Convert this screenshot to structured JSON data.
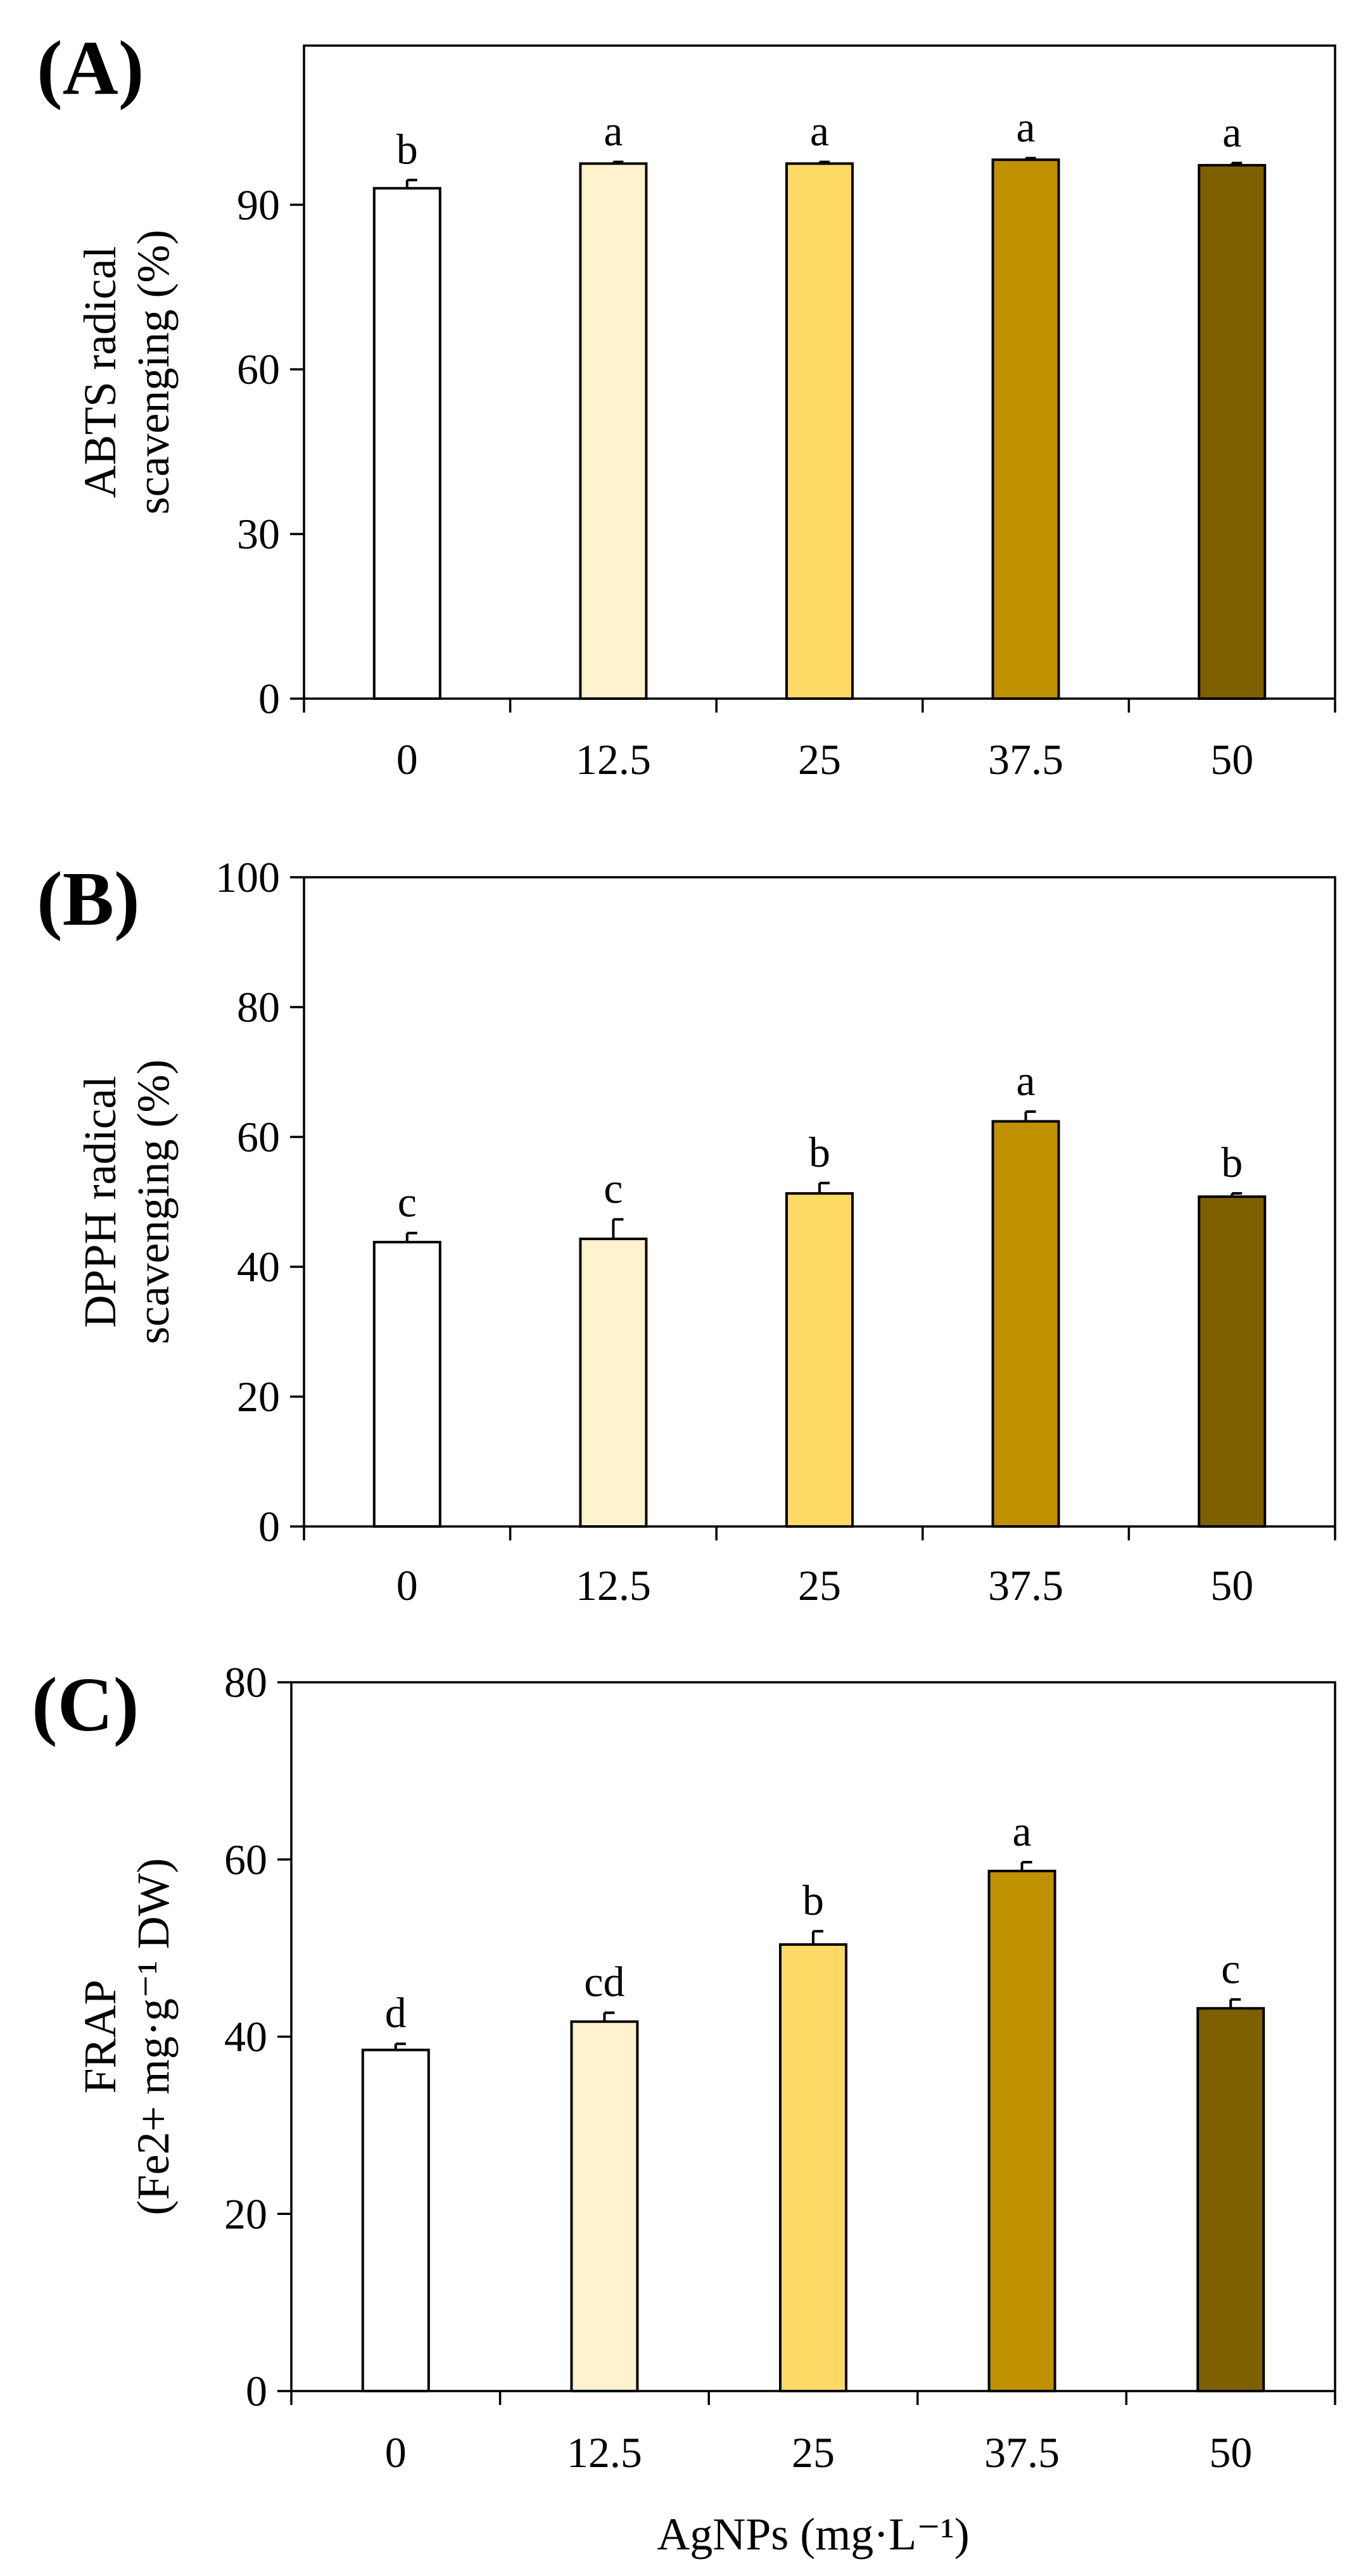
{
  "chart_data": [
    {
      "panel_label": "(A)",
      "type": "bar",
      "categories": [
        "0",
        "12.5",
        "25",
        "37.5",
        "50"
      ],
      "values": [
        93.0,
        97.5,
        97.5,
        98.2,
        97.2
      ],
      "errors": [
        1.5,
        0.3,
        0.3,
        0.3,
        0.4
      ],
      "significance": [
        "b",
        "a",
        "a",
        "a",
        "a"
      ],
      "colors": [
        "#FFFFFF",
        "#FFF2CC",
        "#FFD966",
        "#BF9000",
        "#7F6000"
      ],
      "ylabel_lines": [
        "ABTS radical",
        "scavenging (%)"
      ],
      "ylim": [
        0,
        119
      ],
      "yticks": [
        0,
        30,
        60,
        90
      ],
      "ytick_labels": [
        "0",
        "30",
        "60",
        "90"
      ],
      "xlabel": ""
    },
    {
      "panel_label": "(B)",
      "type": "bar",
      "categories": [
        "0",
        "12.5",
        "25",
        "37.5",
        "50"
      ],
      "values": [
        43.8,
        44.3,
        51.3,
        62.4,
        50.8
      ],
      "errors": [
        1.4,
        3.0,
        1.6,
        1.5,
        0.5
      ],
      "significance": [
        "c",
        "c",
        "b",
        "a",
        "b"
      ],
      "colors": [
        "#FFFFFF",
        "#FFF2CC",
        "#FFD966",
        "#BF9000",
        "#7F6000"
      ],
      "ylabel_lines": [
        "DPPH radical",
        "scavenging (%)"
      ],
      "ylim": [
        0,
        100
      ],
      "yticks": [
        0,
        20,
        40,
        60,
        80,
        100
      ],
      "ytick_labels": [
        "0",
        "20",
        "40",
        "60",
        "80",
        "100"
      ],
      "xlabel": ""
    },
    {
      "panel_label": "(C)",
      "type": "bar",
      "categories": [
        "0",
        "12.5",
        "25",
        "37.5",
        "50"
      ],
      "values": [
        38.5,
        41.7,
        50.4,
        58.7,
        43.2
      ],
      "errors": [
        0.7,
        1.0,
        1.5,
        1.0,
        1.0
      ],
      "significance": [
        "d",
        "cd",
        "b",
        "a",
        "c"
      ],
      "colors": [
        "#FFFFFF",
        "#FFF2CC",
        "#FFD966",
        "#BF9000",
        "#7F6000"
      ],
      "ylabel_lines": [
        "FRAP",
        "(Fe2+ mg·g⁻¹ DW)"
      ],
      "ylim": [
        0,
        80
      ],
      "yticks": [
        0,
        20,
        40,
        60,
        80
      ],
      "ytick_labels": [
        "0",
        "20",
        "40",
        "60",
        "80"
      ],
      "xlabel": "AgNPs (mg·L⁻¹)"
    }
  ]
}
